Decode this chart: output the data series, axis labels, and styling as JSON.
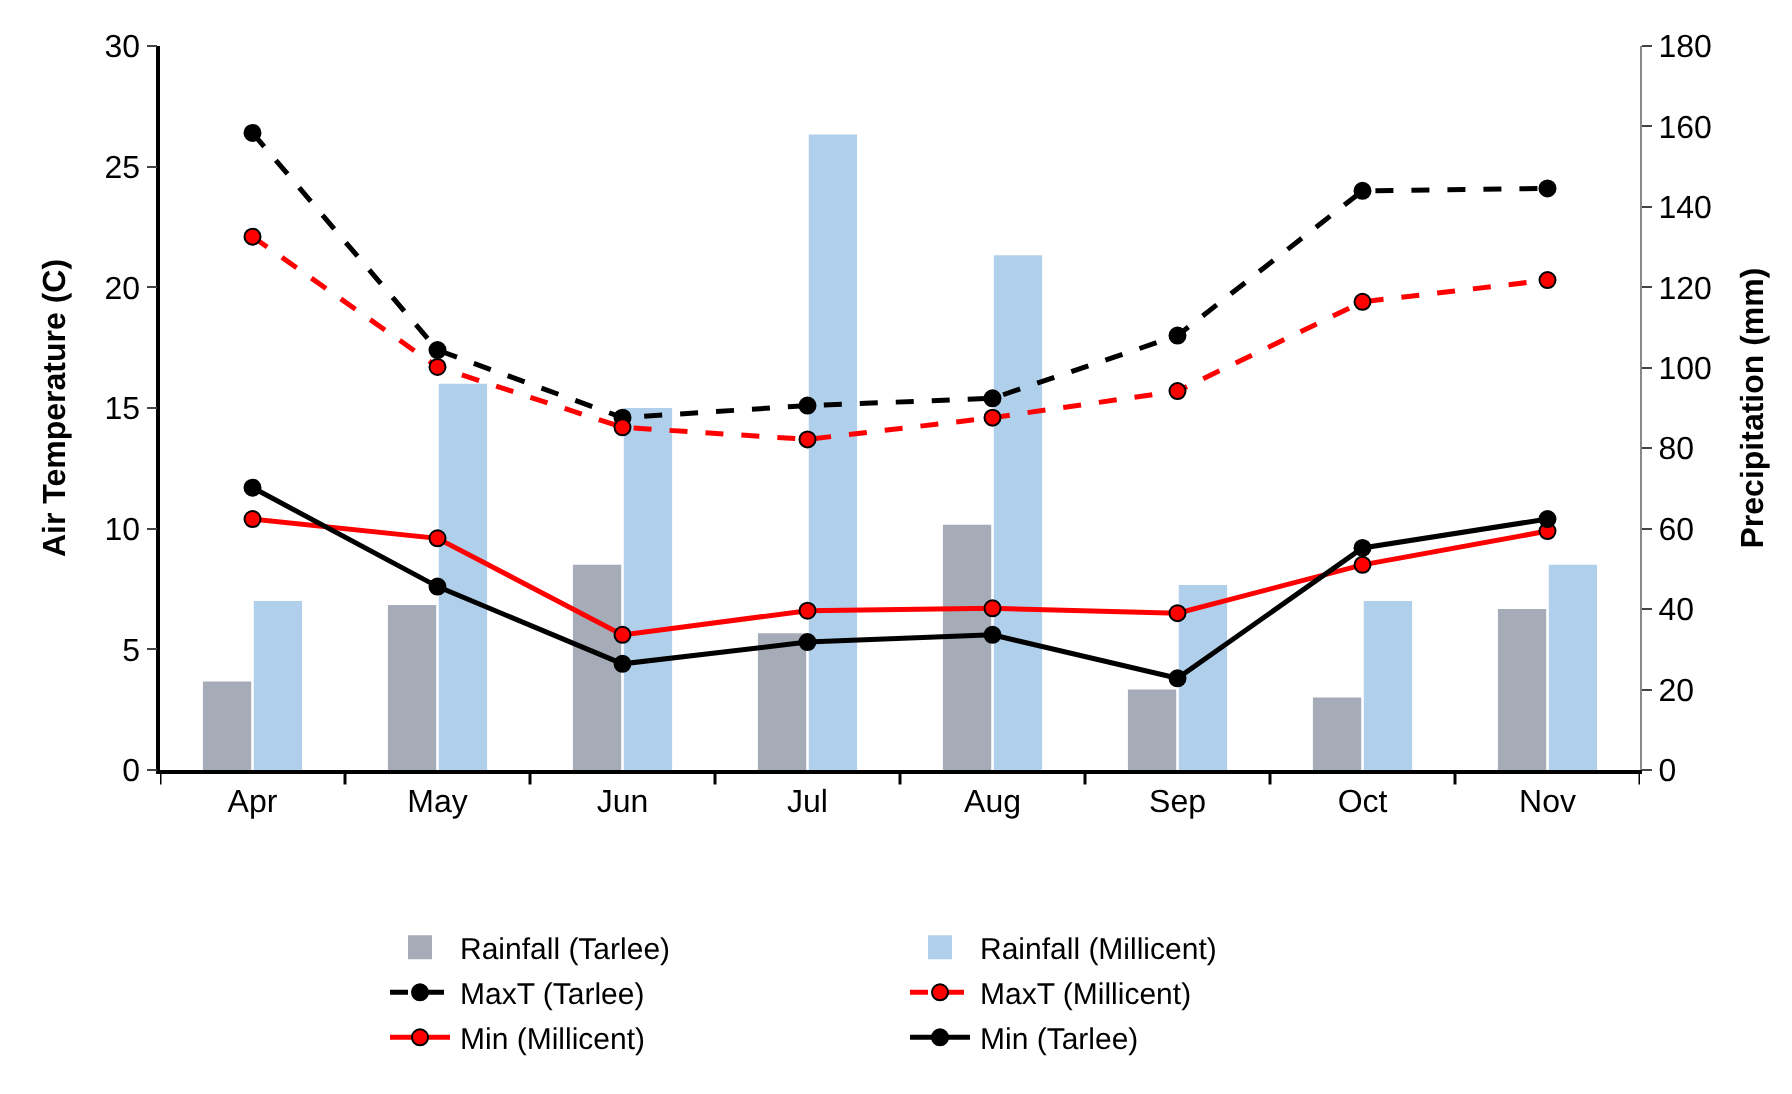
{
  "chart_data": {
    "type": "bar",
    "categories": [
      "Apr",
      "May",
      "Jun",
      "Jul",
      "Aug",
      "Sep",
      "Oct",
      "Nov"
    ],
    "ylabel": "Air Temperature (C)",
    "y2label": "Precipitation (mm)",
    "ylim": [
      0,
      30
    ],
    "yticks": [
      0,
      5,
      10,
      15,
      20,
      25,
      30
    ],
    "y2lim": [
      0,
      180
    ],
    "y2ticks": [
      0,
      20,
      40,
      60,
      80,
      100,
      120,
      140,
      160,
      180
    ],
    "legend": "bottom",
    "series": [
      {
        "name": "Rainfall (Tarlee)",
        "axis": "y2",
        "color": "#a5abb7",
        "values": [
          22,
          41,
          51,
          34,
          61,
          20,
          18,
          40
        ]
      },
      {
        "name": "Rainfall (Millicent)",
        "axis": "y2",
        "color": "#b0cfea",
        "values": [
          42,
          96,
          90,
          158,
          128,
          46,
          42,
          51
        ]
      },
      {
        "name": "MaxT (Tarlee)",
        "type": "line",
        "color": "#000000",
        "line_style": "dashed",
        "marker": "circle",
        "values": [
          26.4,
          17.4,
          14.6,
          15.1,
          15.4,
          18.0,
          24.0,
          24.1
        ]
      },
      {
        "name": "MaxT (Millicent)",
        "type": "line",
        "color": "#ff0000",
        "line_style": "dashed",
        "marker": "circle",
        "values": [
          22.1,
          16.7,
          14.2,
          13.7,
          14.6,
          15.7,
          19.4,
          20.3
        ]
      },
      {
        "name": "Min (Millicent)",
        "type": "line",
        "color": "#ff0000",
        "line_style": "solid",
        "marker": "circle",
        "values": [
          10.4,
          9.6,
          5.6,
          6.6,
          6.7,
          6.5,
          8.5,
          9.9
        ]
      },
      {
        "name": "Min (Tarlee)",
        "type": "line",
        "color": "#000000",
        "line_style": "solid",
        "marker": "circle",
        "values": [
          11.7,
          7.6,
          4.4,
          5.3,
          5.6,
          3.8,
          9.2,
          10.4
        ]
      }
    ]
  }
}
